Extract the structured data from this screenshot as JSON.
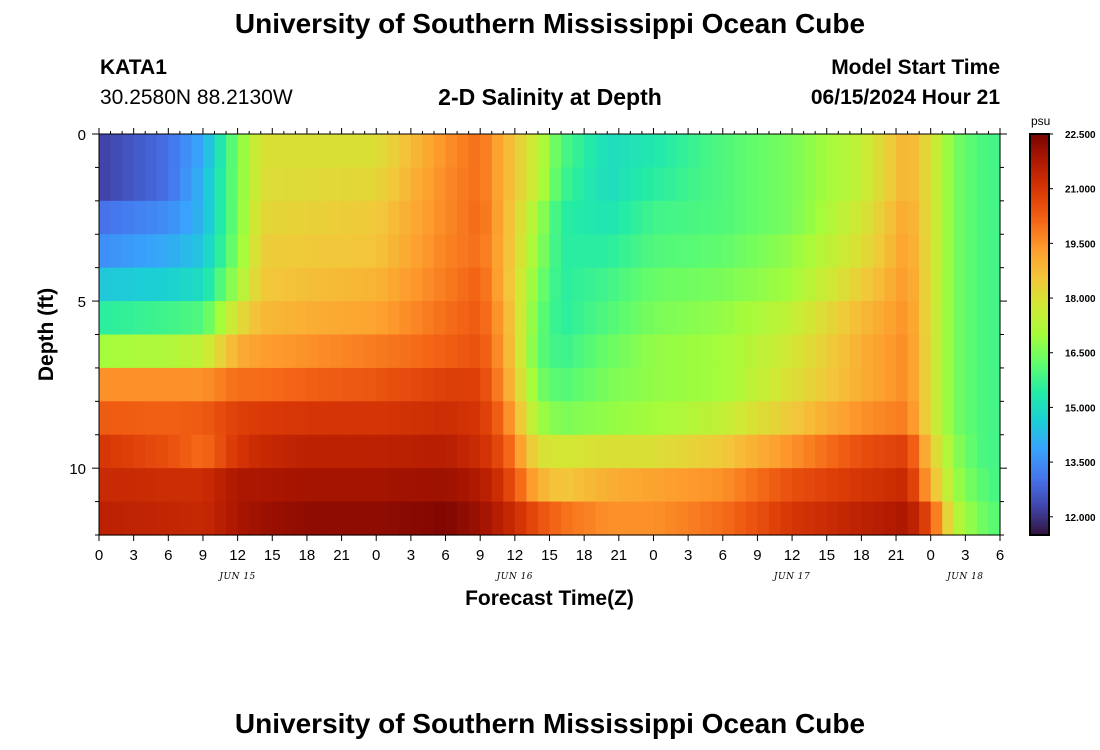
{
  "header": {
    "title": "University of Southern Mississippi Ocean Cube",
    "station_id": "KATA1",
    "station_coords": "30.2580N  88.2130W",
    "plot_title": "2-D Salinity at Depth",
    "model_start_label": "Model Start Time",
    "model_start_value": "06/15/2024 Hour 21"
  },
  "footer": {
    "title": "University of Southern Mississippi Ocean Cube"
  },
  "chart_data": {
    "type": "heatmap",
    "title": "2-D Salinity at Depth",
    "xlabel": "Forecast Time(Z)",
    "ylabel": "Depth (ft)",
    "x_hours_range": [
      0,
      78
    ],
    "x_tick_hours": [
      0,
      3,
      6,
      9,
      12,
      15,
      18,
      21,
      24,
      27,
      30,
      33,
      36,
      39,
      42,
      45,
      48,
      51,
      54,
      57,
      60,
      63,
      66,
      69,
      72,
      75,
      78
    ],
    "x_tick_labels": [
      "0",
      "3",
      "6",
      "9",
      "12",
      "15",
      "18",
      "21",
      "0",
      "3",
      "6",
      "9",
      "12",
      "15",
      "18",
      "21",
      "0",
      "3",
      "6",
      "9",
      "12",
      "15",
      "18",
      "21",
      "0",
      "3",
      "6"
    ],
    "date_labels": [
      {
        "text": "JUN 15",
        "hour": 12
      },
      {
        "text": "JUN 16",
        "hour": 36
      },
      {
        "text": "JUN 17",
        "hour": 60
      },
      {
        "text": "JUN 18",
        "hour": 75
      }
    ],
    "y_range": [
      0,
      12
    ],
    "y_ticks": [
      0,
      5,
      10
    ],
    "y_tick_labels": [
      "0",
      "5",
      "10"
    ],
    "colorbar": {
      "unit": "psu",
      "min": 11.5,
      "max": 22.5,
      "tick_values": [
        12.0,
        13.5,
        15.0,
        16.5,
        18.0,
        19.5,
        21.0,
        22.5
      ],
      "tick_labels": [
        "12.000",
        "13.500",
        "15.000",
        "16.500",
        "18.000",
        "19.500",
        "21.000",
        "22.500"
      ],
      "colors": [
        "#30123b",
        "#4145ab",
        "#4675ed",
        "#39a2fc",
        "#1bcfd4",
        "#24eca6",
        "#61fc6c",
        "#a4fc3b",
        "#d1e834",
        "#f3c63a",
        "#fe9b2d",
        "#f36315",
        "#d93806",
        "#b11901",
        "#7a0402"
      ]
    },
    "depth_layers": [
      0.5,
      1.5,
      2.5,
      3.5,
      4.5,
      5.5,
      6.5,
      7.5,
      8.5,
      9.5,
      10.5,
      11.5
    ],
    "time_keypoints": [
      0,
      6,
      9,
      12,
      14,
      18,
      24,
      30,
      33,
      35,
      38,
      40,
      44,
      48,
      54,
      60,
      66,
      70,
      72,
      74,
      76,
      78
    ],
    "salinity": [
      [
        12.2,
        13.0,
        14.0,
        16.5,
        18.0,
        18.0,
        18.0,
        19.5,
        20.0,
        19.0,
        17.5,
        16.0,
        15.0,
        15.3,
        16.0,
        16.5,
        17.5,
        19.0,
        18.0,
        16.5,
        16.0,
        15.8
      ],
      [
        12.2,
        13.0,
        14.2,
        16.5,
        18.0,
        18.1,
        18.2,
        19.6,
        20.0,
        19.0,
        17.5,
        15.8,
        15.0,
        15.5,
        16.0,
        16.5,
        17.5,
        19.0,
        18.0,
        16.5,
        16.0,
        15.8
      ],
      [
        13.0,
        13.5,
        14.2,
        16.5,
        18.2,
        18.3,
        18.5,
        19.6,
        20.1,
        19.0,
        17.0,
        15.5,
        15.2,
        15.8,
        16.0,
        16.5,
        17.8,
        19.2,
        18.0,
        16.5,
        16.0,
        15.8
      ],
      [
        13.5,
        14.0,
        14.5,
        16.6,
        18.4,
        18.5,
        18.6,
        19.7,
        20.0,
        19.0,
        16.8,
        15.5,
        15.5,
        16.0,
        16.2,
        16.8,
        18.0,
        19.3,
        18.0,
        16.5,
        16.0,
        15.8
      ],
      [
        14.5,
        14.7,
        15.0,
        17.0,
        18.5,
        18.7,
        18.9,
        19.8,
        20.2,
        19.0,
        16.5,
        15.5,
        15.8,
        16.3,
        16.5,
        17.0,
        18.4,
        19.4,
        18.0,
        16.5,
        16.0,
        15.8
      ],
      [
        15.5,
        15.8,
        16.0,
        18.0,
        18.8,
        19.0,
        19.2,
        20.0,
        20.3,
        19.2,
        16.3,
        15.5,
        16.0,
        16.5,
        16.8,
        17.5,
        18.8,
        19.5,
        18.0,
        16.5,
        16.0,
        15.8
      ],
      [
        17.0,
        17.2,
        17.5,
        19.0,
        19.3,
        19.5,
        19.8,
        20.2,
        20.5,
        19.3,
        16.2,
        15.7,
        16.3,
        16.8,
        17.0,
        17.8,
        19.0,
        19.6,
        18.0,
        16.5,
        16.0,
        15.8
      ],
      [
        19.5,
        19.5,
        19.5,
        20.0,
        20.0,
        20.2,
        20.4,
        20.8,
        20.8,
        19.5,
        16.5,
        16.0,
        16.5,
        16.8,
        17.0,
        18.0,
        19.0,
        19.6,
        18.0,
        16.5,
        16.0,
        15.8
      ],
      [
        20.3,
        20.2,
        20.3,
        20.8,
        20.9,
        21.0,
        21.0,
        21.2,
        21.0,
        20.0,
        17.0,
        16.5,
        16.8,
        17.0,
        17.5,
        18.5,
        19.5,
        19.8,
        18.0,
        16.5,
        16.0,
        15.8
      ],
      [
        21.0,
        20.5,
        20.0,
        21.0,
        21.3,
        21.5,
        21.5,
        21.6,
        21.2,
        20.5,
        18.0,
        17.8,
        18.0,
        18.0,
        18.5,
        19.5,
        20.5,
        20.8,
        18.5,
        16.8,
        16.0,
        15.8
      ],
      [
        21.3,
        21.2,
        21.2,
        21.8,
        21.8,
        21.9,
        21.9,
        22.0,
        21.7,
        21.0,
        19.0,
        18.5,
        19.0,
        19.2,
        19.5,
        20.5,
        21.0,
        21.3,
        19.0,
        17.0,
        16.2,
        15.8
      ],
      [
        21.5,
        21.4,
        21.3,
        21.8,
        22.0,
        22.2,
        22.2,
        22.4,
        22.0,
        21.5,
        20.5,
        20.0,
        19.5,
        19.5,
        20.0,
        21.0,
        21.5,
        21.8,
        20.5,
        17.5,
        16.5,
        16.0
      ]
    ]
  }
}
